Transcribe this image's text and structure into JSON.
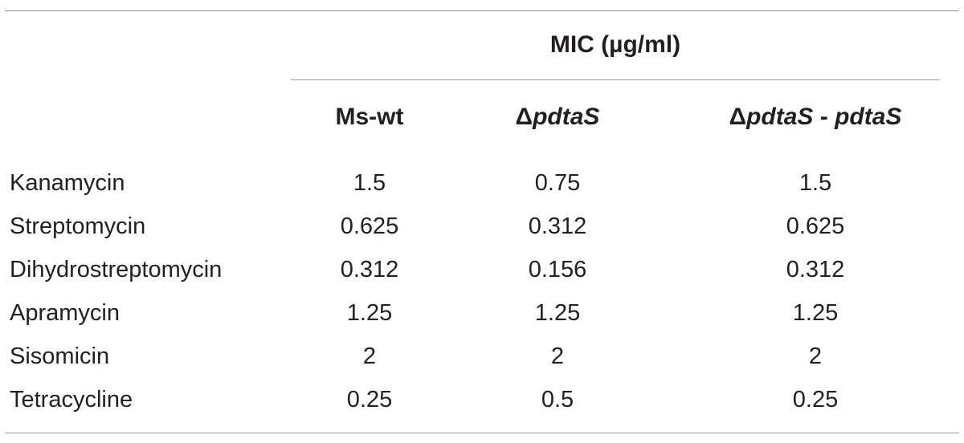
{
  "table": {
    "group_header": "MIC (µg/ml)",
    "columns": [
      {
        "label": "Ms-wt"
      },
      {
        "label": "ΔpdtaS"
      },
      {
        "label": "ΔpdtaS - pdtaS"
      }
    ],
    "rows": [
      {
        "label": "Kanamycin",
        "values": [
          "1.5",
          "0.75",
          "1.5"
        ]
      },
      {
        "label": "Streptomycin",
        "values": [
          "0.625",
          "0.312",
          "0.625"
        ]
      },
      {
        "label": "Dihydrostreptomycin",
        "values": [
          "0.312",
          "0.156",
          "0.312"
        ]
      },
      {
        "label": "Apramycin",
        "values": [
          "1.25",
          "1.25",
          "1.25"
        ]
      },
      {
        "label": "Sisomicin",
        "values": [
          "2",
          "2",
          "2"
        ]
      },
      {
        "label": "Tetracycline",
        "values": [
          "0.25",
          "0.5",
          "0.25"
        ]
      }
    ]
  }
}
